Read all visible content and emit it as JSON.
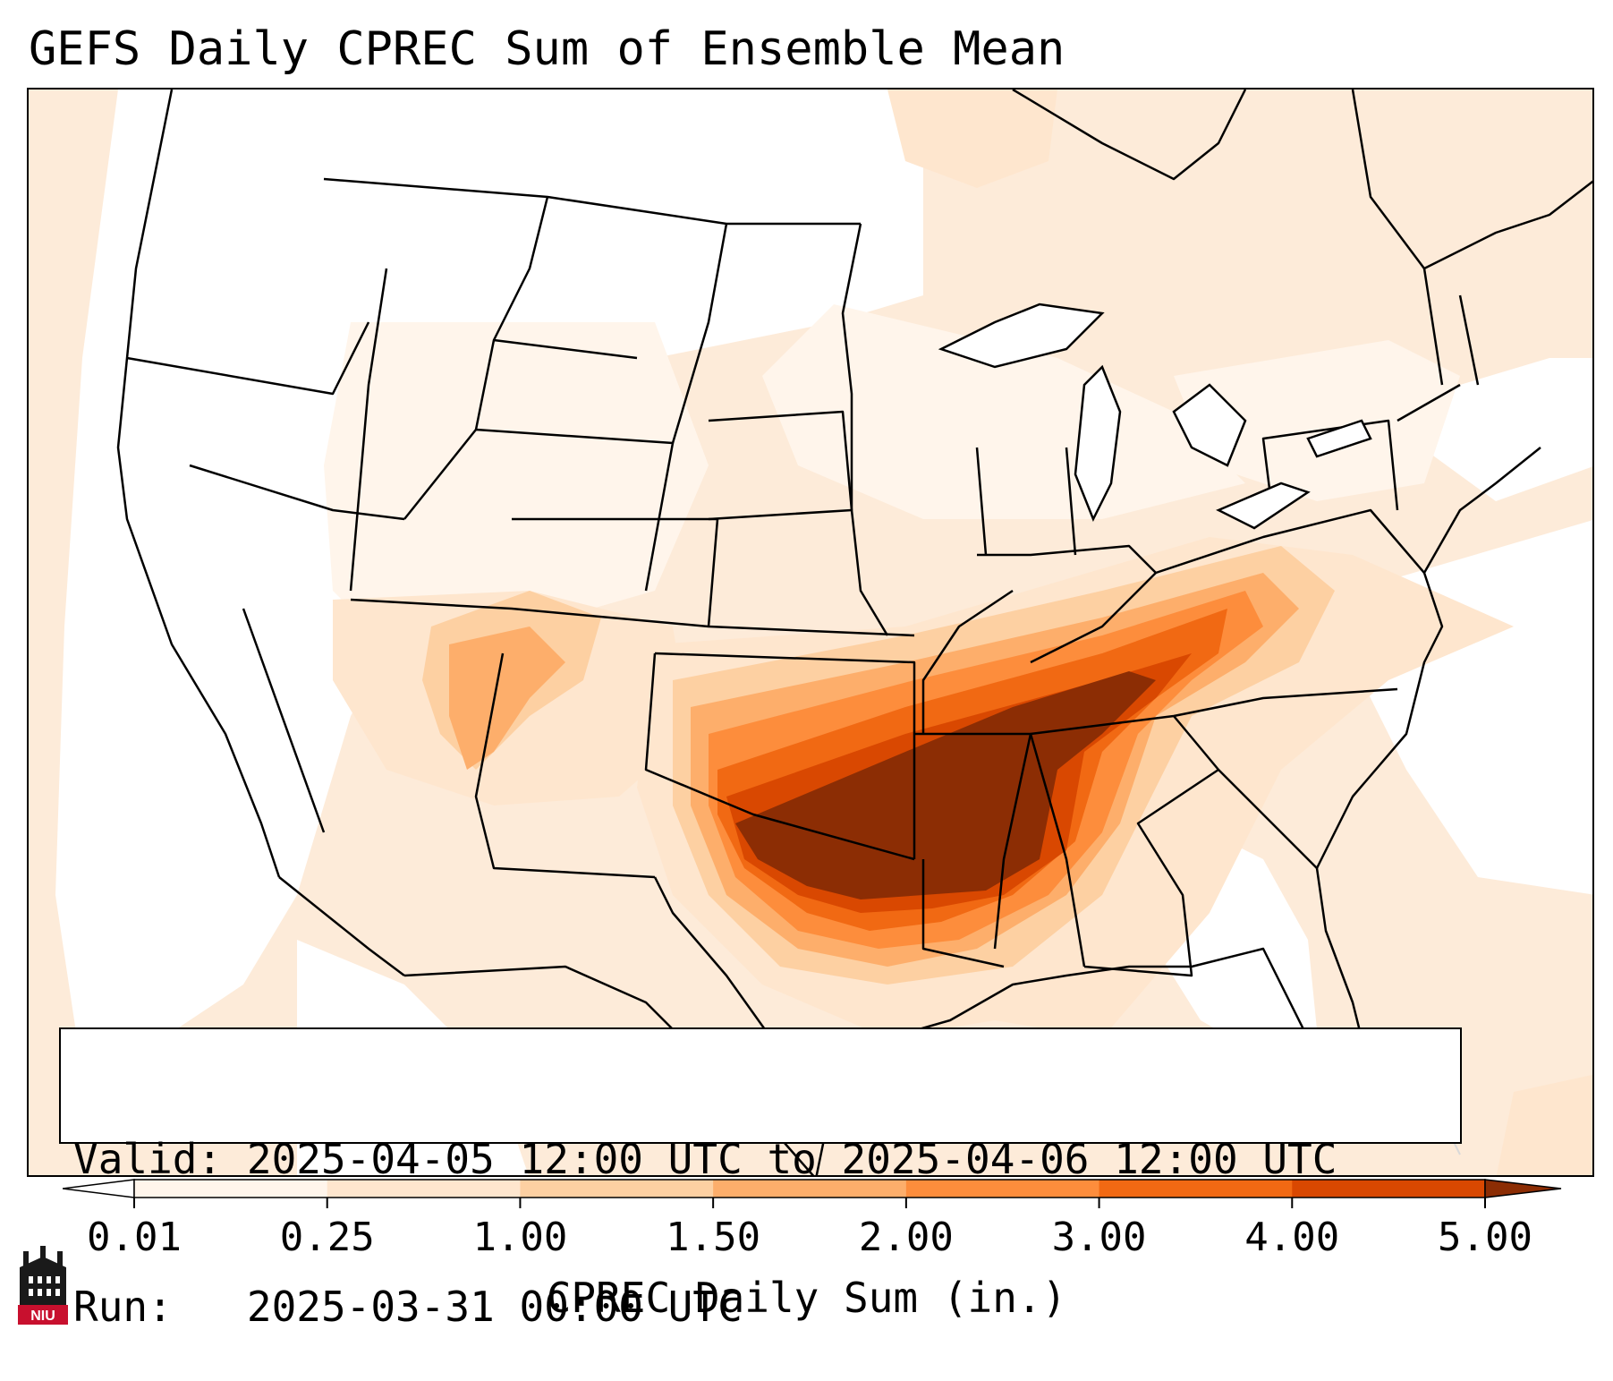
{
  "title": "GEFS Daily CPREC Sum of Ensemble Mean",
  "info": {
    "valid_label": "Valid:",
    "valid_value": "2025-04-05 12:00 UTC to 2025-04-06 12:00 UTC",
    "run_label": "Run:",
    "run_value": "2025-03-31 00:00 UTC"
  },
  "colorbar": {
    "label": "CPREC Daily Sum (in.)",
    "ticks": [
      "0.01",
      "0.25",
      "1.00",
      "1.50",
      "2.00",
      "3.00",
      "4.00",
      "5.00"
    ],
    "colors": [
      "#fff5eb",
      "#fee6ce",
      "#fdd0a2",
      "#fdae6b",
      "#fd8d3c",
      "#f16913",
      "#d94801"
    ],
    "under_color": "#ffffff",
    "over_color": "#8c2d04"
  },
  "map": {
    "domain": "Contiguous United States",
    "variable": "Convective precipitation, daily sum of GEFS ensemble mean",
    "units": "in.",
    "heaviest_area": "Arkansas, Tennessee, Kentucky, Mississippi, eastern Oklahoma, northeast Texas"
  },
  "logo": {
    "text": "NIU",
    "name": "niu-logo-icon"
  }
}
